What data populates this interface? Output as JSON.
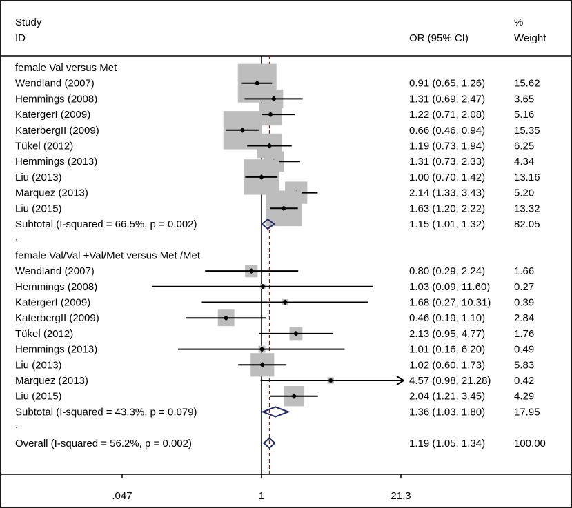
{
  "chart_data": {
    "type": "forest",
    "header": {
      "col1_line1": "Study",
      "col1_line2": "ID",
      "col2": "OR (95% CI)",
      "col3_line1": "%",
      "col3_line2": "Weight"
    },
    "x_scale": "log",
    "xlim": [
      0.047,
      21.3
    ],
    "ticks": [
      {
        "value": 0.047,
        "label": ".047"
      },
      {
        "value": 1,
        "label": "1"
      },
      {
        "value": 21.3,
        "label": "21.3"
      }
    ],
    "null_line": 1,
    "overall_line": 1.19,
    "rows": [
      {
        "kind": "group",
        "label": "female Val versus Met"
      },
      {
        "kind": "study",
        "label": "Wendland (2007)",
        "or": 0.91,
        "lo": 0.65,
        "hi": 1.26,
        "weight": 15.62,
        "text": "0.91 (0.65, 1.26)",
        "wtext": "15.62"
      },
      {
        "kind": "study",
        "label": "Hemmings (2008)",
        "or": 1.31,
        "lo": 0.69,
        "hi": 2.47,
        "weight": 3.65,
        "text": "1.31 (0.69, 2.47)",
        "wtext": "3.65"
      },
      {
        "kind": "study",
        "label": "KatergerI (2009)",
        "or": 1.22,
        "lo": 0.71,
        "hi": 2.08,
        "weight": 5.16,
        "text": "1.22 (0.71, 2.08)",
        "wtext": "5.16"
      },
      {
        "kind": "study",
        "label": "KaterbergII (2009)",
        "or": 0.66,
        "lo": 0.46,
        "hi": 0.94,
        "weight": 15.35,
        "text": "0.66 (0.46, 0.94)",
        "wtext": "15.35"
      },
      {
        "kind": "study",
        "label": "Tükel (2012)",
        "or": 1.19,
        "lo": 0.73,
        "hi": 1.94,
        "weight": 6.25,
        "text": "1.19 (0.73, 1.94)",
        "wtext": "6.25"
      },
      {
        "kind": "study",
        "label": "Hemmings (2013)",
        "or": 1.31,
        "lo": 0.73,
        "hi": 2.33,
        "weight": 4.34,
        "text": "1.31 (0.73, 2.33)",
        "wtext": "4.34"
      },
      {
        "kind": "study",
        "label": "Liu  (2013)",
        "or": 1.0,
        "lo": 0.7,
        "hi": 1.42,
        "weight": 13.16,
        "text": "1.00 (0.70, 1.42)",
        "wtext": "13.16"
      },
      {
        "kind": "study",
        "label": "Marquez (2013)",
        "or": 2.14,
        "lo": 1.33,
        "hi": 3.43,
        "weight": 5.2,
        "text": "2.14 (1.33, 3.43)",
        "wtext": "5.20"
      },
      {
        "kind": "study",
        "label": "Liu  (2015)",
        "or": 1.63,
        "lo": 1.2,
        "hi": 2.22,
        "weight": 13.32,
        "text": "1.63 (1.20, 2.22)",
        "wtext": "13.32"
      },
      {
        "kind": "subtotal",
        "label": "Subtotal  (I-squared = 66.5%, p = 0.002)",
        "or": 1.15,
        "lo": 1.01,
        "hi": 1.32,
        "weight": 82.05,
        "text": "1.15 (1.01, 1.32)",
        "wtext": "82.05"
      },
      {
        "kind": "spacer",
        "label": "."
      },
      {
        "kind": "group",
        "label": "female Val/Val +Val/Met versus  Met /Met"
      },
      {
        "kind": "study",
        "label": "Wendland (2007)",
        "or": 0.8,
        "lo": 0.29,
        "hi": 2.24,
        "weight": 1.66,
        "text": "0.80 (0.29, 2.24)",
        "wtext": "1.66"
      },
      {
        "kind": "study",
        "label": "Hemmings (2008)",
        "or": 1.03,
        "lo": 0.09,
        "hi": 11.6,
        "weight": 0.27,
        "text": "1.03 (0.09, 11.60)",
        "wtext": "0.27"
      },
      {
        "kind": "study",
        "label": "KatergerI (2009)",
        "or": 1.68,
        "lo": 0.27,
        "hi": 10.31,
        "weight": 0.39,
        "text": "1.68 (0.27, 10.31)",
        "wtext": "0.39"
      },
      {
        "kind": "study",
        "label": "KaterbergII (2009)",
        "or": 0.46,
        "lo": 0.19,
        "hi": 1.1,
        "weight": 2.84,
        "text": "0.46 (0.19, 1.10)",
        "wtext": "2.84"
      },
      {
        "kind": "study",
        "label": "Tükel (2012)",
        "or": 2.13,
        "lo": 0.95,
        "hi": 4.77,
        "weight": 1.76,
        "text": "2.13 (0.95, 4.77)",
        "wtext": "1.76"
      },
      {
        "kind": "study",
        "label": "Hemmings (2013)",
        "or": 1.01,
        "lo": 0.16,
        "hi": 6.2,
        "weight": 0.49,
        "text": "1.01 (0.16, 6.20)",
        "wtext": "0.49"
      },
      {
        "kind": "study",
        "label": "Liu  (2013)",
        "or": 1.02,
        "lo": 0.6,
        "hi": 1.73,
        "weight": 5.83,
        "text": "1.02 (0.60, 1.73)",
        "wtext": "5.83"
      },
      {
        "kind": "study",
        "label": "Marquez (2013)",
        "or": 4.57,
        "lo": 0.98,
        "hi": 21.28,
        "weight": 0.42,
        "text": "4.57 (0.98, 21.28)",
        "wtext": "0.42",
        "arrow": true
      },
      {
        "kind": "study",
        "label": "Liu  (2015)",
        "or": 2.04,
        "lo": 1.21,
        "hi": 3.45,
        "weight": 4.29,
        "text": "2.04 (1.21, 3.45)",
        "wtext": "4.29"
      },
      {
        "kind": "subtotal",
        "label": "Subtotal  (I-squared = 43.3%, p = 0.079)",
        "or": 1.36,
        "lo": 1.03,
        "hi": 1.8,
        "weight": 17.95,
        "text": "1.36 (1.03, 1.80)",
        "wtext": "17.95"
      },
      {
        "kind": "spacer",
        "label": "."
      },
      {
        "kind": "overall",
        "label": "Overall  (I-squared = 56.2%, p = 0.002)",
        "or": 1.19,
        "lo": 1.05,
        "hi": 1.34,
        "weight": 100.0,
        "text": "1.19 (1.05, 1.34)",
        "wtext": "100.00"
      }
    ],
    "colors": {
      "box": "#bdbdbd",
      "diamond": "#1f2a6b",
      "overall_line": "#8b1a1a",
      "line": "#000000",
      "border": "#1a1a1a"
    }
  }
}
